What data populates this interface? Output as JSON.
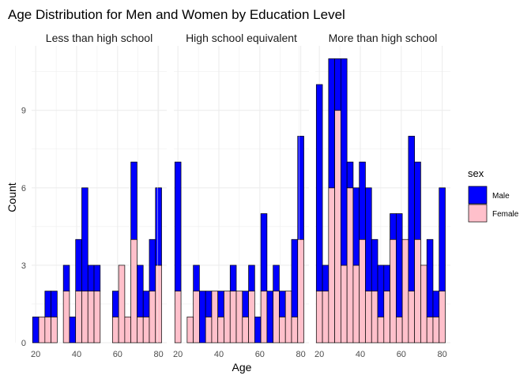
{
  "chart_data": {
    "type": "bar",
    "title": "Age Distribution for Men and Women by Education Level",
    "xlabel": "Age",
    "ylabel": "Count",
    "xlim": [
      18,
      84
    ],
    "ylim": [
      0,
      11.5
    ],
    "x_ticks": [
      20,
      40,
      60,
      80
    ],
    "y_ticks": [
      0,
      3,
      6,
      9
    ],
    "bin_width": 3,
    "bins_start": [
      20,
      23,
      26,
      29,
      32,
      35,
      38,
      41,
      44,
      47,
      50,
      53,
      56,
      59,
      62,
      65,
      68,
      71,
      74,
      77,
      80
    ],
    "stacking": "stacked",
    "grid": true,
    "legend": {
      "title": "sex",
      "position": "right",
      "entries": [
        "Male",
        "Female"
      ]
    },
    "colors": {
      "Male": "#0000ff",
      "Female": "#ffc0cb",
      "outline": "#000000"
    },
    "panels": [
      {
        "title": "Less than high school",
        "series": [
          {
            "name": "Female",
            "values": [
              0,
              1,
              1,
              1,
              0,
              2,
              0,
              2,
              2,
              2,
              2,
              0,
              0,
              1,
              3,
              1,
              4,
              1,
              1,
              2,
              3
            ]
          },
          {
            "name": "Male",
            "values": [
              1,
              0,
              1,
              1,
              0,
              1,
              1,
              2,
              4,
              1,
              1,
              0,
              0,
              1,
              0,
              0,
              3,
              2,
              1,
              2,
              3
            ]
          }
        ]
      },
      {
        "title": "High school equivalent",
        "series": [
          {
            "name": "Female",
            "values": [
              2,
              0,
              1,
              2,
              0,
              1,
              2,
              1,
              2,
              2,
              2,
              1,
              2,
              0,
              2,
              0,
              2,
              1,
              2,
              1,
              4
            ]
          },
          {
            "name": "Male",
            "values": [
              5,
              0,
              0,
              1,
              2,
              1,
              0,
              1,
              0,
              1,
              0,
              1,
              1,
              1,
              3,
              2,
              1,
              1,
              0,
              3,
              4
            ]
          }
        ]
      },
      {
        "title": "More than high school",
        "series": [
          {
            "name": "Female",
            "values": [
              2,
              2,
              6,
              9,
              3,
              6,
              3,
              4,
              2,
              2,
              1,
              2,
              4,
              1,
              4,
              2,
              4,
              3,
              1,
              1,
              2
            ]
          },
          {
            "name": "Male",
            "values": [
              8,
              1,
              5,
              2,
              8,
              1,
              3,
              3,
              4,
              2,
              2,
              1,
              1,
              4,
              0,
              6,
              3,
              0,
              3,
              1,
              4
            ]
          }
        ]
      }
    ]
  }
}
